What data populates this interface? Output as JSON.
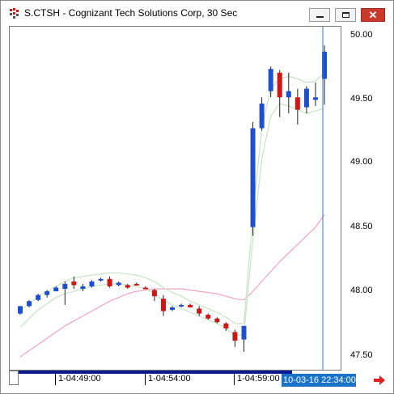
{
  "window": {
    "title": "S.CTSH - Cognizant Tech Solutions Corp, 30 Sec",
    "close_glyph": "✕"
  },
  "colors": {
    "up": "#1f4fd1",
    "down": "#d01515",
    "flat": "#d01515",
    "band": "#c7e3c7",
    "ma": "#f2a3c0",
    "cursor": "#2a7bbd",
    "cursor_label_bg": "#1a73c8",
    "time_bar": "#0b1a8c"
  },
  "price_axis": {
    "labels": [
      "50.00",
      "49.50",
      "49.00",
      "48.50",
      "48.00",
      "47.50"
    ]
  },
  "time_axis": {
    "labels": [
      "1-04:49:00",
      "1-04:54:00",
      "1-04:59:00"
    ],
    "cursor_label": "10-03-16 22:34:00"
  },
  "chart_data": {
    "type": "candlestick",
    "ylim": [
      47.45,
      50.05
    ],
    "candles": [
      {
        "o": 47.8,
        "h": 47.86,
        "l": 47.79,
        "c": 47.86
      },
      {
        "o": 47.86,
        "h": 47.91,
        "l": 47.85,
        "c": 47.9
      },
      {
        "o": 47.91,
        "h": 47.96,
        "l": 47.9,
        "c": 47.95
      },
      {
        "o": 47.95,
        "h": 47.99,
        "l": 47.93,
        "c": 47.98
      },
      {
        "o": 47.98,
        "h": 48.02,
        "l": 47.98,
        "c": 48.01
      },
      {
        "o": 48.0,
        "h": 48.06,
        "l": 47.87,
        "c": 48.04
      },
      {
        "o": 48.06,
        "h": 48.1,
        "l": 48.0,
        "c": 48.03
      },
      {
        "o": 48.0,
        "h": 48.04,
        "l": 47.98,
        "c": 48.02
      },
      {
        "o": 48.02,
        "h": 48.07,
        "l": 48.01,
        "c": 48.06
      },
      {
        "o": 48.07,
        "h": 48.09,
        "l": 48.06,
        "c": 48.08
      },
      {
        "o": 48.08,
        "h": 48.1,
        "l": 48.01,
        "c": 48.02
      },
      {
        "o": 48.03,
        "h": 48.06,
        "l": 48.02,
        "c": 48.05
      },
      {
        "o": 48.03,
        "h": 48.04,
        "l": 48.0,
        "c": 48.01
      },
      {
        "o": 48.04,
        "h": 48.05,
        "l": 48.03,
        "c": 48.04
      },
      {
        "o": 48.01,
        "h": 48.02,
        "l": 48.0,
        "c": 48.01
      },
      {
        "o": 47.99,
        "h": 48.0,
        "l": 47.9,
        "c": 47.94
      },
      {
        "o": 47.92,
        "h": 47.95,
        "l": 47.78,
        "c": 47.82
      },
      {
        "o": 47.83,
        "h": 47.86,
        "l": 47.82,
        "c": 47.85
      },
      {
        "o": 47.86,
        "h": 47.88,
        "l": 47.85,
        "c": 47.87
      },
      {
        "o": 47.87,
        "h": 47.88,
        "l": 47.85,
        "c": 47.85
      },
      {
        "o": 47.84,
        "h": 47.86,
        "l": 47.78,
        "c": 47.8
      },
      {
        "o": 47.79,
        "h": 47.8,
        "l": 47.75,
        "c": 47.76
      },
      {
        "o": 47.76,
        "h": 47.77,
        "l": 47.72,
        "c": 47.73
      },
      {
        "o": 47.72,
        "h": 47.73,
        "l": 47.66,
        "c": 47.68
      },
      {
        "o": 47.65,
        "h": 47.67,
        "l": 47.53,
        "c": 47.58
      },
      {
        "o": 47.59,
        "h": 47.7,
        "l": 47.49,
        "c": 47.7
      },
      {
        "o": 48.5,
        "h": 49.35,
        "l": 48.43,
        "c": 49.3
      },
      {
        "o": 49.3,
        "h": 49.55,
        "l": 49.28,
        "c": 49.5
      },
      {
        "o": 49.6,
        "h": 49.8,
        "l": 49.55,
        "c": 49.78
      },
      {
        "o": 49.75,
        "h": 49.77,
        "l": 49.39,
        "c": 49.55
      },
      {
        "o": 49.55,
        "h": 49.75,
        "l": 49.42,
        "c": 49.6
      },
      {
        "o": 49.55,
        "h": 49.62,
        "l": 49.33,
        "c": 49.45
      },
      {
        "o": 49.47,
        "h": 49.64,
        "l": 49.42,
        "c": 49.62
      },
      {
        "o": 49.53,
        "h": 49.67,
        "l": 49.48,
        "c": 49.55
      },
      {
        "o": 49.7,
        "h": 49.97,
        "l": 49.49,
        "c": 49.92
      }
    ],
    "band_upper": [
      47.83,
      47.88,
      47.94,
      47.98,
      48.02,
      48.06,
      48.09,
      48.1,
      48.11,
      48.12,
      48.13,
      48.13,
      48.12,
      48.11,
      48.09,
      48.06,
      48.01,
      47.97,
      47.94,
      47.9,
      47.87,
      47.84,
      47.81,
      47.77,
      47.72,
      47.72,
      48.6,
      49.3,
      49.62,
      49.7,
      49.72,
      49.7,
      49.67,
      49.68,
      49.75
    ],
    "band_lower": [
      47.69,
      47.76,
      47.83,
      47.88,
      47.93,
      47.96,
      47.98,
      48.0,
      48.02,
      48.03,
      48.04,
      48.04,
      48.03,
      48.02,
      48.0,
      47.96,
      47.91,
      47.87,
      47.84,
      47.81,
      47.78,
      47.75,
      47.72,
      47.68,
      47.62,
      47.63,
      48.4,
      49.05,
      49.4,
      49.5,
      49.48,
      49.45,
      49.42,
      49.44,
      49.46
    ],
    "ma": [
      47.45,
      47.5,
      47.55,
      47.6,
      47.65,
      47.7,
      47.74,
      47.78,
      47.82,
      47.86,
      47.9,
      47.93,
      47.96,
      47.98,
      47.99,
      48.0,
      48.0,
      48.0,
      48.0,
      47.99,
      47.98,
      47.97,
      47.96,
      47.94,
      47.92,
      47.91,
      47.98,
      48.06,
      48.14,
      48.22,
      48.29,
      48.36,
      48.43,
      48.5,
      48.6
    ]
  }
}
